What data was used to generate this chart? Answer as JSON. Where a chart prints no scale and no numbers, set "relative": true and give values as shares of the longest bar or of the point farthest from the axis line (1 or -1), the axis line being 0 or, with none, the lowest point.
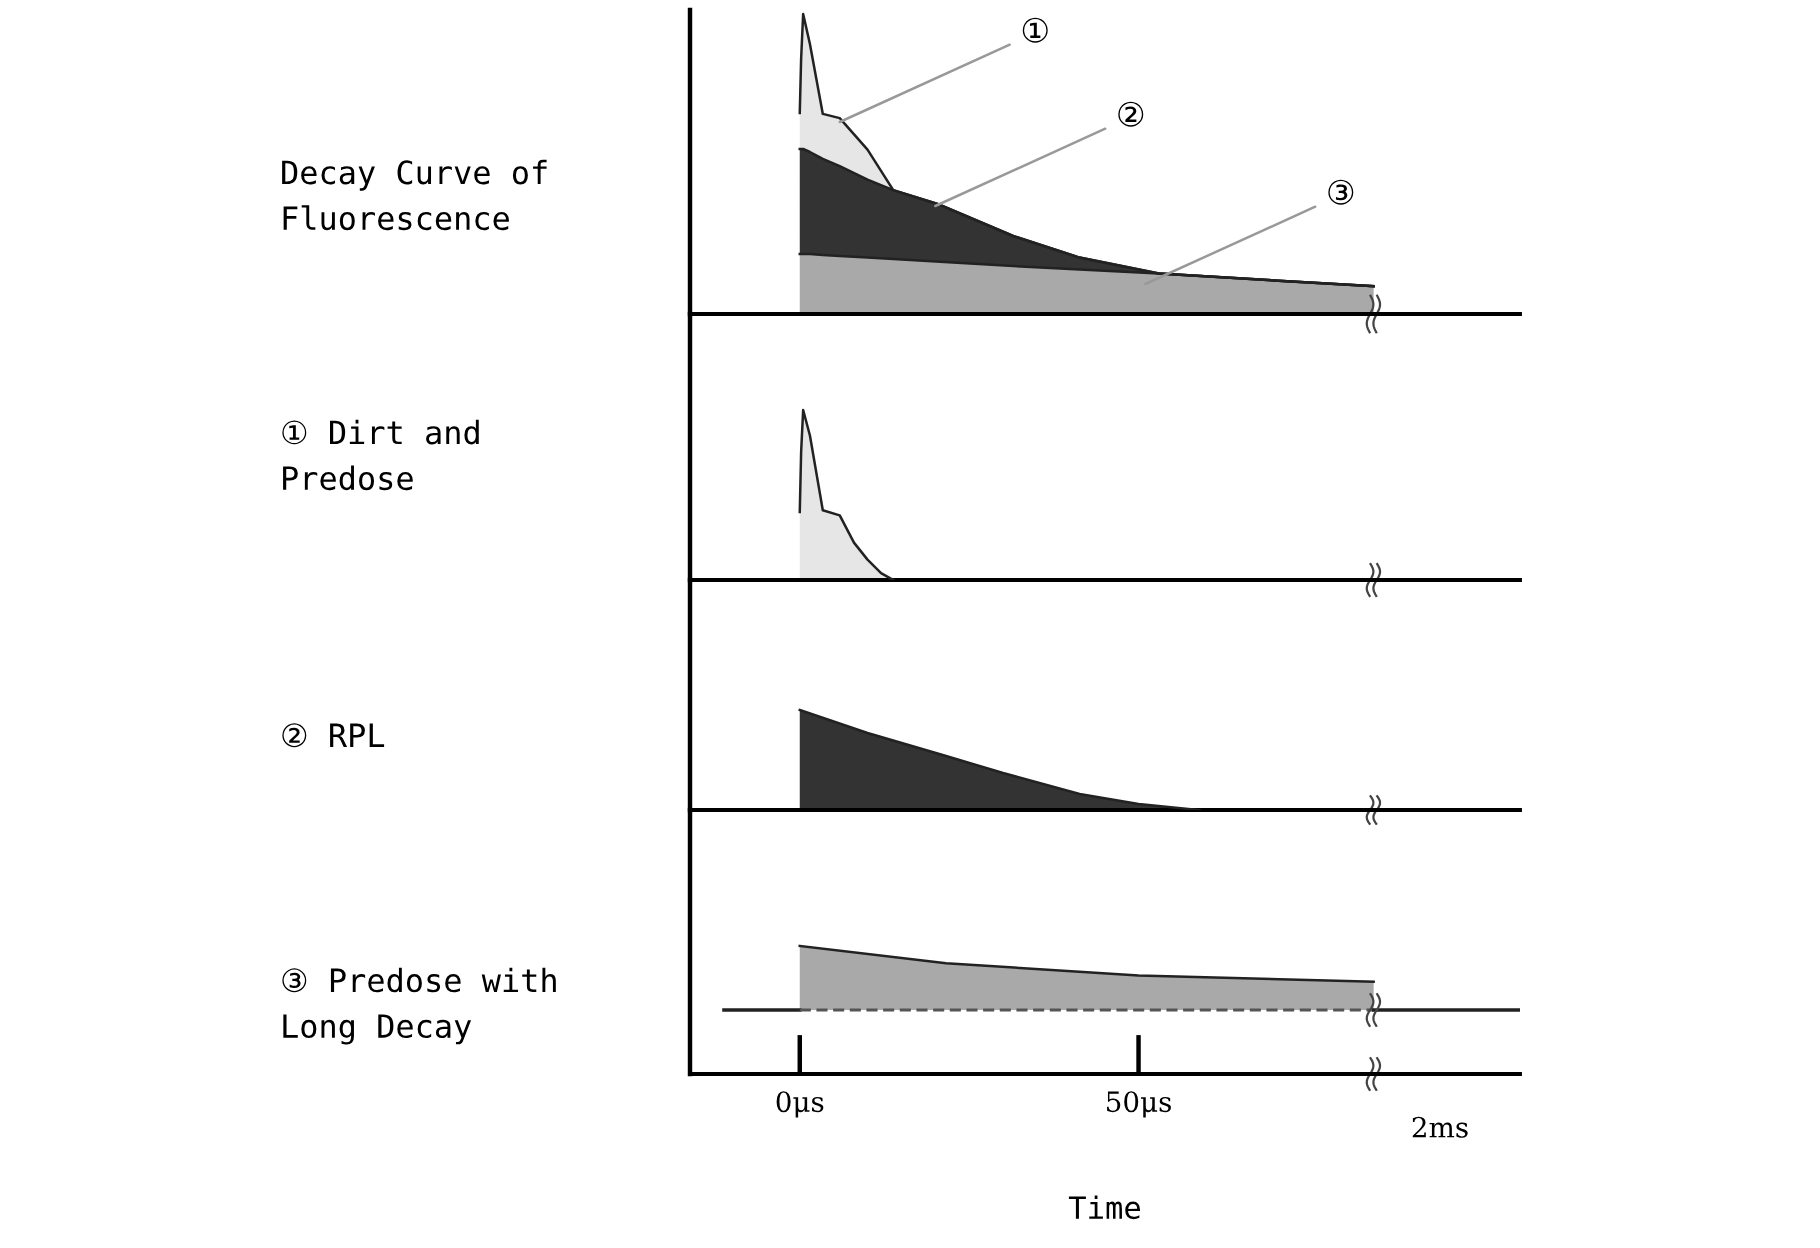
{
  "chart_data": [
    {
      "type": "area",
      "ylabel": "Decay Curve of\nFluorescence",
      "relative": true,
      "stacked": true,
      "xlim": [
        -16.2,
        106.3
      ],
      "tick_labels": false,
      "x": [
        0,
        0.2,
        0.5,
        1.5,
        3.4,
        5.9,
        10,
        13.8,
        20.7,
        31.5,
        41.3,
        53,
        70,
        84.7
      ],
      "series": [
        {
          "color": "#a9a9a9",
          "values": [
            0.2,
            0.2,
            0.2,
            0.2,
            0.197,
            0.193,
            0.188,
            0.183,
            0.174,
            0.16,
            0.148,
            0.135,
            0.112,
            0.093
          ]
        },
        {
          "color": "#333333",
          "values": [
            0.35,
            0.35,
            0.35,
            0.34,
            0.32,
            0.3,
            0.26,
            0.23,
            0.19,
            0.1,
            0.04,
            0,
            0,
            0
          ]
        },
        {
          "color": "#e6e6e6",
          "values": [
            0.12,
            0.3,
            0.45,
            0.36,
            0.15,
            0.16,
            0.1,
            0,
            0,
            0,
            0,
            0,
            0,
            0
          ]
        }
      ],
      "annotations": [
        {
          "text": "①",
          "x": 5.9,
          "y": 0.64
        },
        {
          "text": "②",
          "x": 20,
          "y": 0.36
        },
        {
          "text": "③",
          "x": 51,
          "y": 0.1
        }
      ]
    },
    {
      "type": "area",
      "ylabel": "① Dirt and\nPredose",
      "relative": true,
      "xlim": [
        -16.2,
        106.3
      ],
      "tick_labels": false,
      "x": [
        0,
        0.2,
        0.5,
        1.5,
        3.4,
        5.9,
        8,
        10,
        12,
        13.8
      ],
      "series": [
        {
          "color": "#e6e6e6",
          "values": [
            0.4,
            0.75,
            1,
            0.85,
            0.41,
            0.38,
            0.22,
            0.12,
            0.04,
            0
          ]
        }
      ]
    },
    {
      "type": "area",
      "ylabel": "② RPL",
      "relative": true,
      "xlim": [
        -16.2,
        106.3
      ],
      "tick_labels": false,
      "x": [
        0,
        10,
        21.6,
        30,
        41.3,
        50,
        59
      ],
      "series": [
        {
          "color": "#333333",
          "values": [
            1,
            0.77,
            0.54,
            0.37,
            0.16,
            0.06,
            0
          ]
        }
      ]
    },
    {
      "type": "area",
      "ylabel": "③ Predose with\nLong Decay",
      "relative": true,
      "xlim": [
        -16.2,
        106.3
      ],
      "tick_labels": "x",
      "xticks": [
        {
          "value": 0,
          "label": "0μs"
        },
        {
          "value": 50,
          "label": "50μs"
        }
      ],
      "xlabel": "Time",
      "x": [
        0,
        21.6,
        50,
        84.7
      ],
      "series": [
        {
          "color": "#a9a9a9",
          "values": [
            1,
            0.73,
            0.54,
            0.44
          ]
        }
      ],
      "annotations": [
        "2ms"
      ]
    }
  ]
}
